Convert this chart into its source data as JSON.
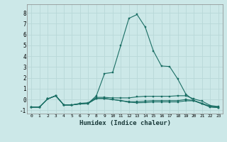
{
  "xlabel": "Humidex (Indice chaleur)",
  "xlim": [
    -0.5,
    23.5
  ],
  "ylim": [
    -1.3,
    8.8
  ],
  "yticks": [
    -1,
    0,
    1,
    2,
    3,
    4,
    5,
    6,
    7,
    8
  ],
  "xticks": [
    0,
    1,
    2,
    3,
    4,
    5,
    6,
    7,
    8,
    9,
    10,
    11,
    12,
    13,
    14,
    15,
    16,
    17,
    18,
    19,
    20,
    21,
    22,
    23
  ],
  "bg_color": "#cce8e8",
  "grid_color": "#b8d8d8",
  "line_color": "#1a6e64",
  "lines": [
    [
      -0.7,
      -0.7,
      0.05,
      0.35,
      -0.5,
      -0.5,
      -0.4,
      -0.35,
      0.35,
      2.4,
      2.5,
      5.0,
      7.5,
      7.85,
      6.7,
      4.5,
      3.1,
      3.05,
      1.9,
      0.5,
      -0.1,
      -0.4,
      -0.7,
      -0.75
    ],
    [
      -0.7,
      -0.7,
      0.05,
      0.35,
      -0.5,
      -0.5,
      -0.35,
      -0.3,
      0.2,
      0.2,
      0.15,
      0.15,
      0.15,
      0.25,
      0.3,
      0.3,
      0.3,
      0.3,
      0.35,
      0.35,
      0.05,
      -0.15,
      -0.55,
      -0.65
    ],
    [
      -0.7,
      -0.7,
      0.05,
      0.35,
      -0.5,
      -0.5,
      -0.4,
      -0.35,
      0.1,
      0.1,
      0.0,
      -0.1,
      -0.2,
      -0.2,
      -0.15,
      -0.1,
      -0.1,
      -0.1,
      -0.1,
      0.0,
      -0.1,
      -0.35,
      -0.65,
      -0.75
    ],
    [
      -0.7,
      -0.7,
      0.05,
      0.35,
      -0.5,
      -0.5,
      -0.4,
      -0.35,
      0.1,
      0.1,
      0.0,
      -0.1,
      -0.25,
      -0.3,
      -0.28,
      -0.22,
      -0.22,
      -0.22,
      -0.22,
      -0.12,
      -0.12,
      -0.4,
      -0.62,
      -0.68
    ]
  ]
}
